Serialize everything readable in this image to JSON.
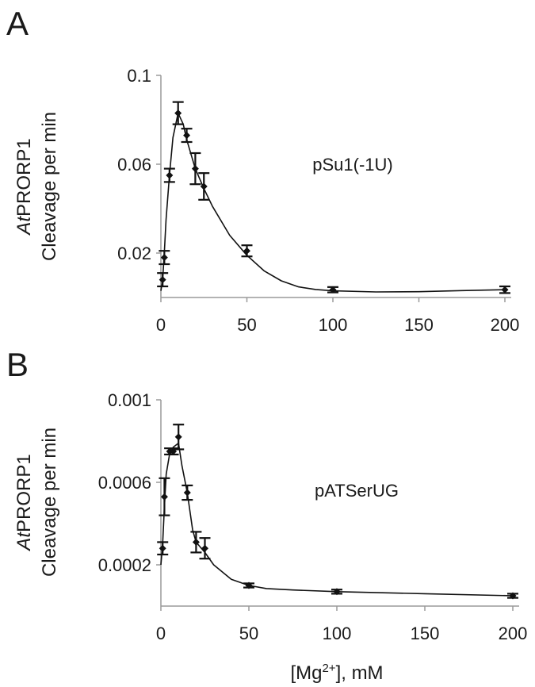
{
  "figure_xlabel": {
    "pre": "[Mg",
    "sup": "2+",
    "post": "], mM"
  },
  "chart_data": [
    {
      "panel_label": "A",
      "type": "scatter",
      "title": "pSu1(-1U)",
      "ylabel_line1_italic": "At",
      "ylabel_line1_rest": "PRORP1",
      "ylabel_line2": "Cleavage per min",
      "xlim": [
        0,
        200
      ],
      "ylim": [
        0,
        0.1
      ],
      "xticks": [
        0,
        50,
        100,
        150,
        200
      ],
      "yticks": [
        0.02,
        0.06,
        0.1
      ],
      "ytick_labels": [
        "0.02",
        "0.06",
        "0.1"
      ],
      "points": [
        {
          "x": 1,
          "y": 0.008,
          "err": 0.003
        },
        {
          "x": 2,
          "y": 0.018,
          "err": 0.003
        },
        {
          "x": 5,
          "y": 0.055,
          "err": 0.003
        },
        {
          "x": 10,
          "y": 0.083,
          "err": 0.005
        },
        {
          "x": 15,
          "y": 0.073,
          "err": 0.003
        },
        {
          "x": 20,
          "y": 0.058,
          "err": 0.007
        },
        {
          "x": 25,
          "y": 0.05,
          "err": 0.006
        },
        {
          "x": 50,
          "y": 0.021,
          "err": 0.0025
        },
        {
          "x": 100,
          "y": 0.0035,
          "err": 0.0012
        },
        {
          "x": 200,
          "y": 0.0035,
          "err": 0.0015
        }
      ],
      "curve": [
        [
          0,
          0.003
        ],
        [
          1,
          0.008
        ],
        [
          2,
          0.02
        ],
        [
          3,
          0.035
        ],
        [
          5,
          0.055
        ],
        [
          7,
          0.072
        ],
        [
          10,
          0.083
        ],
        [
          13,
          0.078
        ],
        [
          15,
          0.071
        ],
        [
          20,
          0.058
        ],
        [
          25,
          0.049
        ],
        [
          30,
          0.041
        ],
        [
          40,
          0.028
        ],
        [
          50,
          0.019
        ],
        [
          60,
          0.012
        ],
        [
          70,
          0.0075
        ],
        [
          80,
          0.0048
        ],
        [
          90,
          0.0036
        ],
        [
          100,
          0.003
        ],
        [
          125,
          0.0025
        ],
        [
          150,
          0.0026
        ],
        [
          175,
          0.0031
        ],
        [
          200,
          0.0035
        ]
      ]
    },
    {
      "panel_label": "B",
      "type": "scatter",
      "title": "pATSerUG",
      "ylabel_line1_italic": "At",
      "ylabel_line1_rest": "PRORP1",
      "ylabel_line2": "Cleavage per min",
      "xlim": [
        0,
        200
      ],
      "ylim": [
        0,
        0.001
      ],
      "xticks": [
        0,
        50,
        100,
        150,
        200
      ],
      "yticks": [
        0.0002,
        0.0006,
        0.001
      ],
      "ytick_labels": [
        "0.0002",
        "0.0006",
        "0.001"
      ],
      "points": [
        {
          "x": 1,
          "y": 0.00028,
          "err": 3e-05
        },
        {
          "x": 2,
          "y": 0.00053,
          "err": 9e-05
        },
        {
          "x": 5,
          "y": 0.00075,
          "err": 1.5e-05
        },
        {
          "x": 7,
          "y": 0.00075,
          "err": 1.5e-05
        },
        {
          "x": 10,
          "y": 0.00082,
          "err": 6e-05
        },
        {
          "x": 15,
          "y": 0.00055,
          "err": 3.5e-05
        },
        {
          "x": 20,
          "y": 0.00031,
          "err": 5e-05
        },
        {
          "x": 25,
          "y": 0.00028,
          "err": 5e-05
        },
        {
          "x": 50,
          "y": 0.0001,
          "err": 1e-05
        },
        {
          "x": 100,
          "y": 7e-05,
          "err": 1e-05
        },
        {
          "x": 200,
          "y": 5e-05,
          "err": 1e-05
        }
      ],
      "curve": [
        [
          0,
          0.0002
        ],
        [
          1,
          0.0003
        ],
        [
          2,
          0.00048
        ],
        [
          3,
          0.00064
        ],
        [
          5,
          0.00074
        ],
        [
          7,
          0.00077
        ],
        [
          10,
          0.00079
        ],
        [
          12,
          0.00068
        ],
        [
          15,
          0.00055
        ],
        [
          18,
          0.00037
        ],
        [
          20,
          0.00031
        ],
        [
          25,
          0.00026
        ],
        [
          30,
          0.0002
        ],
        [
          40,
          0.00013
        ],
        [
          50,
          0.0001
        ],
        [
          60,
          8.5e-05
        ],
        [
          75,
          7.8e-05
        ],
        [
          100,
          7e-05
        ],
        [
          150,
          6e-05
        ],
        [
          200,
          5e-05
        ]
      ]
    }
  ]
}
